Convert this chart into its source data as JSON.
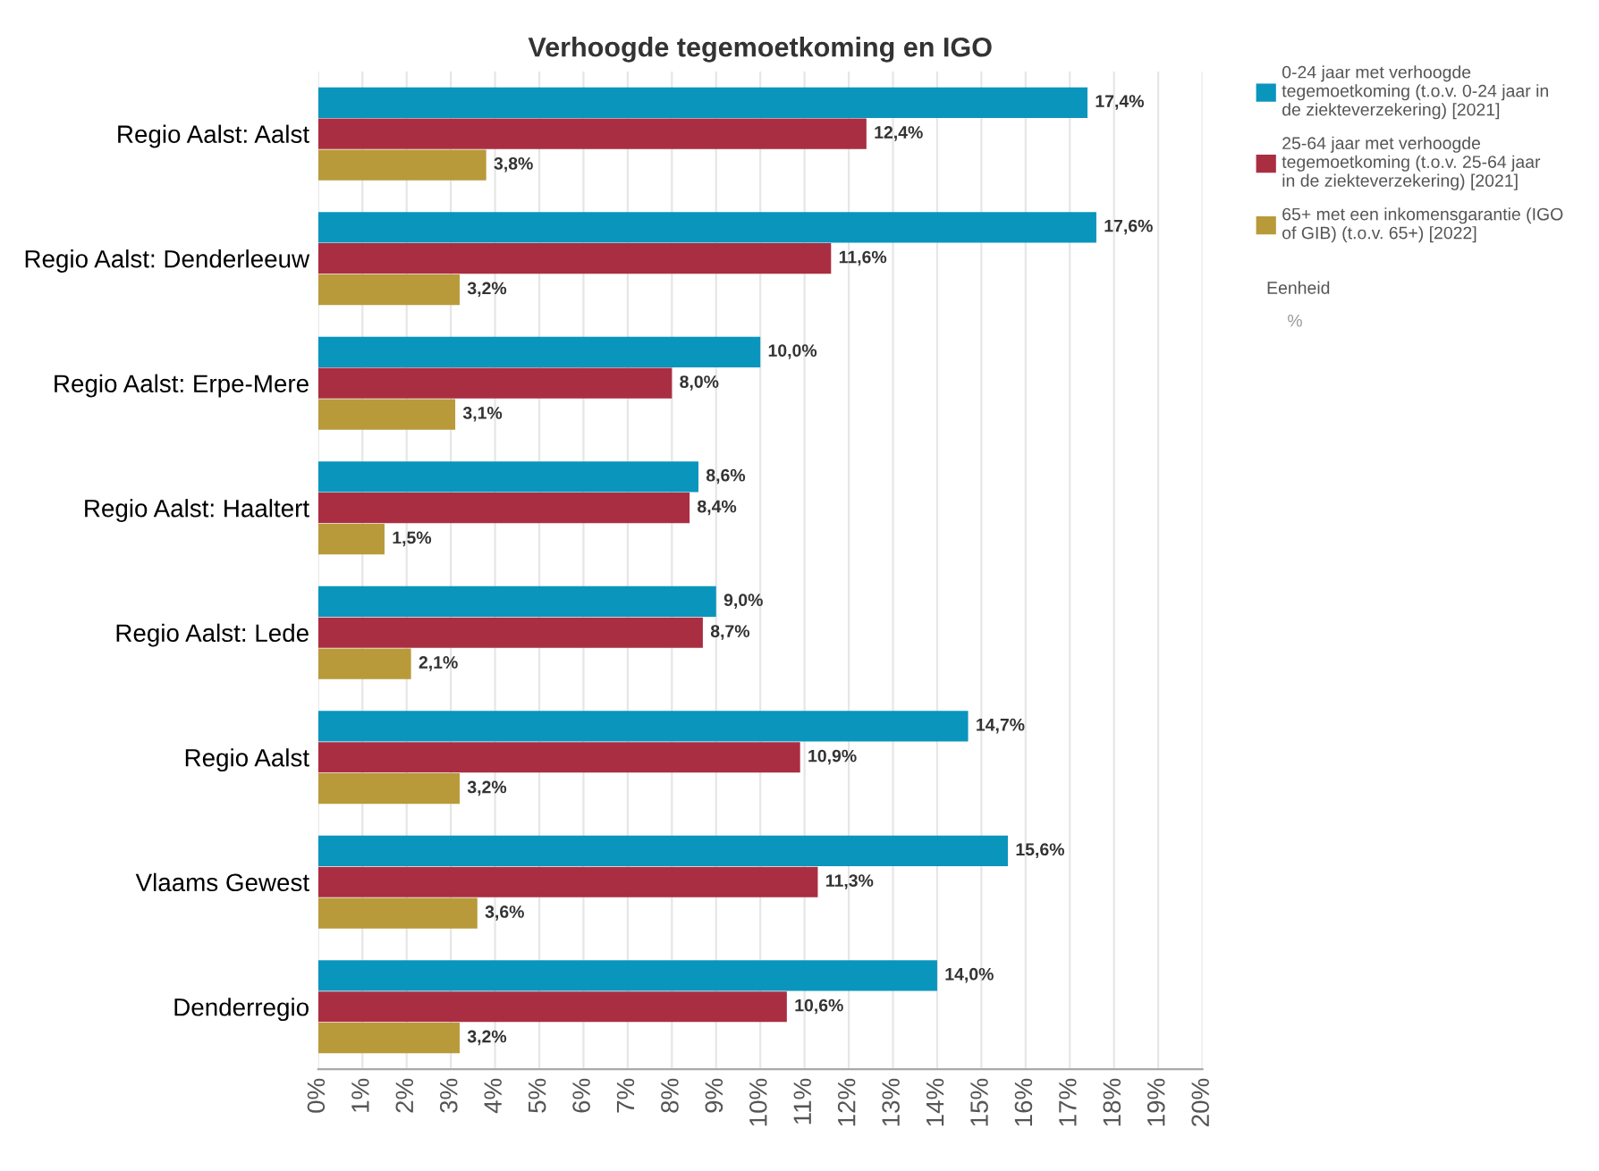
{
  "chart_data": {
    "type": "bar",
    "orientation": "horizontal",
    "title": "Verhoogde tegemoetkoming en IGO",
    "categories": [
      "Regio Aalst: Aalst",
      "Regio Aalst: Denderleeuw",
      "Regio Aalst: Erpe-Mere",
      "Regio Aalst: Haaltert",
      "Regio Aalst: Lede",
      "Regio Aalst",
      "Vlaams Gewest",
      "Denderregio"
    ],
    "series": [
      {
        "name": "0-24 jaar met verhoogde tegemoetkoming (t.o.v. 0-24 jaar in de ziekteverzekering) [2021]",
        "color": "#0a95bd",
        "values": [
          17.4,
          17.6,
          10.0,
          8.6,
          9.0,
          14.7,
          15.6,
          14.0
        ],
        "value_labels": [
          "17,4%",
          "17,6%",
          "10,0%",
          "8,6%",
          "9,0%",
          "14,7%",
          "15,6%",
          "14,0%"
        ]
      },
      {
        "name": "25-64 jaar met verhoogde tegemoetkoming (t.o.v. 25-64 jaar in de ziekteverzekering) [2021]",
        "color": "#aa2e42",
        "values": [
          12.4,
          11.6,
          8.0,
          8.4,
          8.7,
          10.9,
          11.3,
          10.6
        ],
        "value_labels": [
          "12,4%",
          "11,6%",
          "8,0%",
          "8,4%",
          "8,7%",
          "10,9%",
          "11,3%",
          "10,6%"
        ]
      },
      {
        "name": "65+ met een inkomensgarantie (IGO of GIB) (t.o.v. 65+) [2022]",
        "color": "#b89a3a",
        "values": [
          3.8,
          3.2,
          3.1,
          1.5,
          2.1,
          3.2,
          3.6,
          3.2
        ],
        "value_labels": [
          "3,8%",
          "3,2%",
          "3,1%",
          "1,5%",
          "2,1%",
          "3,2%",
          "3,6%",
          "3,2%"
        ]
      }
    ],
    "xlim": [
      0,
      20
    ],
    "xticks": [
      {
        "value": 0,
        "label": "0%"
      },
      {
        "value": 1,
        "label": "1%"
      },
      {
        "value": 2,
        "label": "2%"
      },
      {
        "value": 3,
        "label": "3%"
      },
      {
        "value": 4,
        "label": "4%"
      },
      {
        "value": 5,
        "label": "5%"
      },
      {
        "value": 6,
        "label": "6%"
      },
      {
        "value": 7,
        "label": "7%"
      },
      {
        "value": 8,
        "label": "8%"
      },
      {
        "value": 9,
        "label": "9%"
      },
      {
        "value": 10,
        "label": "10%"
      },
      {
        "value": 11,
        "label": "11%"
      },
      {
        "value": 12,
        "label": "12%"
      },
      {
        "value": 13,
        "label": "13%"
      },
      {
        "value": 14,
        "label": "14%"
      },
      {
        "value": 15,
        "label": "15%"
      },
      {
        "value": 16,
        "label": "16%"
      },
      {
        "value": 17,
        "label": "17%"
      },
      {
        "value": 18,
        "label": "18%"
      },
      {
        "value": 19,
        "label": "19%"
      },
      {
        "value": 20,
        "label": "20%"
      }
    ],
    "grid": "x",
    "legend": "top right",
    "annotations": [
      "Eenheid",
      "%"
    ]
  }
}
